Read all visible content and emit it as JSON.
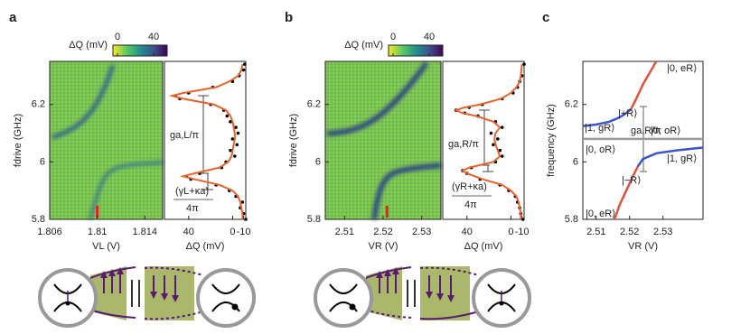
{
  "chart_data": [
    {
      "type": "heatmap",
      "label": "a",
      "x_label": "VL (V)",
      "y_label": "fdrive (GHz)",
      "xlim": [
        1.806,
        1.8155
      ],
      "xticks": [
        1.806,
        1.81,
        1.814
      ],
      "ylim": [
        5.8,
        6.35
      ],
      "yticks": [
        5.8,
        6,
        6.2
      ],
      "marker_x": 1.81,
      "marker_color": "#e8201c",
      "colorbar": {
        "label": "ΔQ (mV)",
        "lim": [
          -5,
          55
        ],
        "ticks": [
          0,
          40
        ],
        "colors": [
          "#fde725",
          "#5ec962",
          "#21918c",
          "#3b528b",
          "#440154"
        ]
      }
    },
    {
      "type": "profile",
      "x_label": "ΔQ (mV)",
      "xlim": [
        62,
        -12
      ],
      "xticks": [
        40,
        0,
        -10
      ],
      "ylim": [
        5.8,
        6.35
      ],
      "y": [
        5.8,
        5.82,
        5.84,
        5.86,
        5.88,
        5.9,
        5.92,
        5.94,
        5.95,
        5.96,
        5.98,
        6.0,
        6.02,
        6.04,
        6.06,
        6.08,
        6.1,
        6.12,
        6.14,
        6.16,
        6.18,
        6.2,
        6.22,
        6.23,
        6.24,
        6.26,
        6.28,
        6.3,
        6.32,
        6.34
      ],
      "series": [
        {
          "style": "dots",
          "color": "#000000",
          "values": [
            -12,
            -10,
            -7,
            -9,
            -3,
            3,
            15,
            38,
            42,
            30,
            10,
            6,
            -2,
            2,
            -4,
            0,
            -5,
            -3,
            2,
            5,
            8,
            20,
            48,
            52,
            40,
            18,
            0,
            -6,
            -10,
            -11
          ]
        },
        {
          "style": "line",
          "color": "#e8622c",
          "values": [
            -9,
            -9,
            -8,
            -7,
            -5,
            0,
            12,
            35,
            45,
            35,
            12,
            4,
            1,
            0,
            -1,
            -2,
            -2,
            -1,
            0,
            2,
            6,
            17,
            45,
            55,
            45,
            15,
            3,
            -5,
            -8,
            -9
          ]
        }
      ],
      "annotations": [
        "ga,L/π",
        "(γL+κa)",
        "4π"
      ]
    },
    {
      "type": "heatmap",
      "label": "b",
      "x_label": "VR (V)",
      "y_label": "fdrive (GHz)",
      "xlim": [
        2.505,
        2.535
      ],
      "xticks": [
        2.51,
        2.52,
        2.53
      ],
      "ylim": [
        5.8,
        6.35
      ],
      "yticks": [
        5.8,
        6,
        6.2
      ],
      "marker_x": 2.521,
      "marker_color": "#e8201c",
      "colorbar": {
        "label": "ΔQ (mV)",
        "lim": [
          -5,
          55
        ],
        "ticks": [
          0,
          40
        ],
        "colors": [
          "#fde725",
          "#5ec962",
          "#21918c",
          "#3b528b",
          "#440154"
        ]
      }
    },
    {
      "type": "profile",
      "x_label": "ΔQ (mV)",
      "xlim": [
        62,
        -12
      ],
      "xticks": [
        40,
        0,
        -10
      ],
      "ylim": [
        5.8,
        6.35
      ],
      "y": [
        5.8,
        5.82,
        5.84,
        5.86,
        5.88,
        5.9,
        5.92,
        5.94,
        5.96,
        5.97,
        5.98,
        6.0,
        6.02,
        6.04,
        6.06,
        6.08,
        6.1,
        6.12,
        6.14,
        6.16,
        6.17,
        6.18,
        6.19,
        6.2,
        6.22,
        6.24,
        6.26,
        6.28,
        6.3,
        6.34
      ],
      "series": [
        {
          "style": "dots",
          "color": "#000000",
          "values": [
            -11,
            -9,
            -8,
            -6,
            -4,
            2,
            10,
            28,
            40,
            44,
            36,
            14,
            8,
            10,
            16,
            12,
            18,
            8,
            14,
            30,
            42,
            50,
            38,
            26,
            8,
            -2,
            -6,
            -8,
            -10,
            -12
          ]
        },
        {
          "style": "line",
          "color": "#e8622c",
          "values": [
            -9,
            -9,
            -8,
            -7,
            -5,
            0,
            8,
            26,
            40,
            44,
            38,
            16,
            10,
            12,
            14,
            15,
            14,
            10,
            16,
            32,
            44,
            50,
            42,
            28,
            9,
            0,
            -5,
            -8,
            -9,
            -10
          ]
        }
      ],
      "annotations": [
        "ga,R/π",
        "(γR+κa)",
        "4π"
      ]
    },
    {
      "type": "line",
      "label": "c",
      "x_label": "VR (V)",
      "y_label": "frequency (GHz)",
      "xlim": [
        2.506,
        2.542
      ],
      "xticks": [
        2.51,
        2.52,
        2.53
      ],
      "ylim": [
        5.8,
        6.35
      ],
      "yticks": [
        5.8,
        6,
        6.2
      ],
      "series": [
        {
          "color": "#3a56c8",
          "x": [
            2.506,
            2.51,
            2.514,
            2.517,
            2.519,
            2.5205
          ],
          "values": [
            6.125,
            6.13,
            6.14,
            6.155,
            6.17,
            6.185
          ]
        },
        {
          "color": "#e0533a",
          "x": [
            2.5205,
            2.522,
            2.524,
            2.526,
            2.528
          ],
          "values": [
            6.185,
            6.22,
            6.27,
            6.31,
            6.35
          ]
        },
        {
          "color": "#e0533a",
          "x": [
            2.5155,
            2.517,
            2.519,
            2.521,
            2.5225
          ],
          "values": [
            5.8,
            5.85,
            5.9,
            5.95,
            5.985
          ]
        },
        {
          "color": "#3a56c8",
          "x": [
            2.5225,
            2.524,
            2.528,
            2.534,
            2.542
          ],
          "values": [
            5.985,
            6.01,
            6.03,
            6.04,
            6.05
          ]
        },
        {
          "color": "#999999",
          "x": [
            2.506,
            2.542
          ],
          "values": [
            6.08,
            6.08
          ]
        }
      ],
      "annotations": [
        "|0, eR⟩",
        "|+R⟩",
        "|1, gR⟩",
        "ga,R/π",
        "|0, oR⟩",
        "|0, oR⟩",
        "|1, gR⟩",
        "|−R⟩",
        "|0, eR⟩"
      ]
    }
  ]
}
